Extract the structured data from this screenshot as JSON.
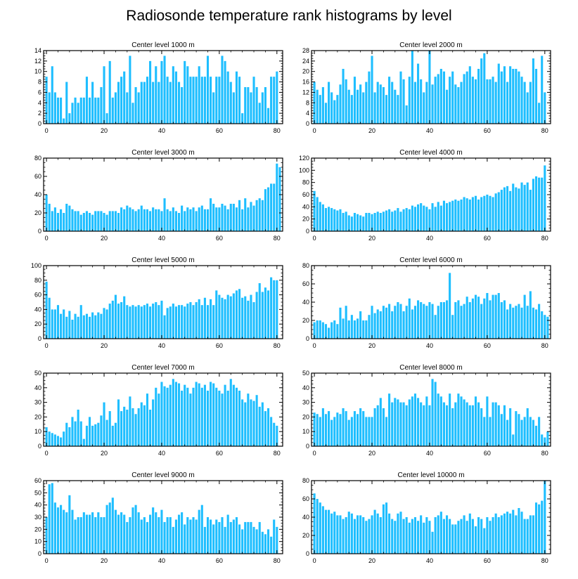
{
  "figure": {
    "title": "Radiosonde temperature rank histograms by level",
    "bar_color": "#1ebeff",
    "axis_color": "#000000"
  },
  "chart_data": [
    {
      "type": "bar",
      "title": "Center level 1000 m",
      "x_ticks": [
        0,
        20,
        40,
        60,
        80
      ],
      "xlim": [
        -1,
        82
      ],
      "ylim": [
        0,
        14
      ],
      "y_ticks": [
        0,
        2,
        4,
        6,
        8,
        10,
        12,
        14
      ],
      "values": [
        9,
        6,
        11,
        6,
        5,
        5,
        1,
        8,
        2,
        4,
        5,
        4,
        5,
        5,
        9,
        5,
        8,
        5,
        5,
        7,
        11,
        2,
        12,
        5,
        6,
        8,
        9,
        10,
        6,
        13,
        4,
        7,
        6,
        8,
        8,
        9,
        12,
        8,
        11,
        8,
        12,
        13,
        9,
        8,
        11,
        10,
        8,
        7,
        12,
        11,
        9,
        9,
        9,
        11,
        9,
        9,
        13,
        9,
        6,
        9,
        9,
        13,
        12,
        10,
        8,
        6,
        10,
        9,
        2,
        7,
        7,
        6,
        9,
        7,
        4,
        6,
        7,
        3,
        9,
        9,
        10
      ]
    },
    {
      "type": "bar",
      "title": "Center level 2000 m",
      "x_ticks": [
        0,
        20,
        40,
        60,
        80
      ],
      "xlim": [
        -1,
        82
      ],
      "ylim": [
        0,
        28
      ],
      "y_ticks": [
        0,
        4,
        8,
        12,
        16,
        20,
        24,
        28
      ],
      "values": [
        16,
        13,
        11,
        14,
        8,
        16,
        12,
        9,
        11,
        15,
        21,
        17,
        13,
        11,
        18,
        13,
        15,
        12,
        16,
        20,
        26,
        12,
        16,
        15,
        14,
        11,
        18,
        16,
        13,
        11,
        20,
        17,
        7,
        18,
        28,
        16,
        23,
        17,
        12,
        16,
        28,
        15,
        18,
        19,
        21,
        20,
        13,
        18,
        20,
        15,
        14,
        16,
        19,
        20,
        22,
        18,
        17,
        21,
        25,
        27,
        17,
        17,
        18,
        16,
        23,
        20,
        22,
        16,
        22,
        21,
        21,
        20,
        18,
        16,
        12,
        16,
        25,
        21,
        8,
        26,
        12
      ]
    },
    {
      "type": "bar",
      "title": "Center level 3000 m",
      "x_ticks": [
        0,
        20,
        40,
        60,
        80
      ],
      "xlim": [
        -1,
        82
      ],
      "ylim": [
        0,
        80
      ],
      "y_ticks": [
        0,
        20,
        40,
        60,
        80
      ],
      "values": [
        40,
        30,
        22,
        26,
        20,
        24,
        20,
        30,
        28,
        24,
        22,
        22,
        18,
        20,
        22,
        20,
        18,
        22,
        22,
        22,
        20,
        18,
        22,
        22,
        22,
        20,
        26,
        24,
        28,
        26,
        24,
        22,
        24,
        28,
        24,
        24,
        22,
        26,
        24,
        24,
        22,
        36,
        24,
        22,
        26,
        22,
        20,
        28,
        22,
        26,
        24,
        26,
        22,
        26,
        28,
        24,
        24,
        36,
        30,
        26,
        26,
        30,
        28,
        24,
        30,
        30,
        26,
        34,
        24,
        36,
        26,
        32,
        28,
        34,
        36,
        34,
        46,
        48,
        52,
        52,
        74,
        70
      ]
    },
    {
      "type": "bar",
      "title": "Center level 4000 m",
      "x_ticks": [
        0,
        20,
        40,
        60,
        80
      ],
      "xlim": [
        -1,
        82
      ],
      "ylim": [
        0,
        120
      ],
      "y_ticks": [
        0,
        20,
        40,
        60,
        80,
        100,
        120
      ],
      "values": [
        66,
        56,
        48,
        44,
        38,
        40,
        38,
        36,
        34,
        36,
        30,
        32,
        26,
        24,
        30,
        28,
        26,
        24,
        30,
        30,
        28,
        30,
        32,
        30,
        32,
        34,
        36,
        32,
        34,
        38,
        32,
        36,
        38,
        36,
        42,
        40,
        44,
        46,
        42,
        40,
        36,
        46,
        40,
        48,
        42,
        50,
        46,
        48,
        50,
        52,
        50,
        52,
        56,
        54,
        52,
        56,
        58,
        52,
        56,
        58,
        60,
        58,
        56,
        62,
        64,
        68,
        72,
        74,
        66,
        78,
        72,
        70,
        80,
        76,
        80,
        68,
        86,
        90,
        88,
        88,
        108
      ]
    },
    {
      "type": "bar",
      "title": "Center level 5000 m",
      "x_ticks": [
        0,
        20,
        40,
        60,
        80
      ],
      "xlim": [
        -1,
        82
      ],
      "ylim": [
        0,
        100
      ],
      "y_ticks": [
        0,
        20,
        40,
        60,
        80,
        100
      ],
      "values": [
        78,
        56,
        40,
        40,
        46,
        34,
        40,
        30,
        38,
        26,
        34,
        30,
        46,
        32,
        34,
        30,
        36,
        32,
        36,
        34,
        42,
        40,
        48,
        52,
        60,
        48,
        50,
        58,
        46,
        44,
        46,
        44,
        46,
        44,
        46,
        48,
        44,
        48,
        50,
        46,
        52,
        32,
        42,
        44,
        48,
        44,
        46,
        46,
        44,
        48,
        50,
        46,
        50,
        54,
        46,
        56,
        46,
        54,
        46,
        66,
        60,
        56,
        54,
        60,
        58,
        62,
        66,
        68,
        56,
        58,
        52,
        60,
        50,
        64,
        76,
        64,
        70,
        66,
        84,
        80,
        80
      ]
    },
    {
      "type": "bar",
      "title": "Center level 6000 m",
      "x_ticks": [
        0,
        20,
        40,
        60,
        80
      ],
      "xlim": [
        -1,
        82
      ],
      "ylim": [
        0,
        80
      ],
      "y_ticks": [
        0,
        20,
        40,
        60,
        80
      ],
      "values": [
        18,
        20,
        20,
        18,
        16,
        12,
        18,
        20,
        16,
        34,
        22,
        36,
        20,
        26,
        20,
        22,
        30,
        20,
        20,
        26,
        36,
        28,
        32,
        30,
        36,
        34,
        38,
        30,
        36,
        40,
        38,
        30,
        36,
        44,
        32,
        36,
        42,
        40,
        38,
        36,
        40,
        38,
        26,
        36,
        40,
        40,
        42,
        72,
        26,
        40,
        42,
        36,
        38,
        46,
        40,
        44,
        48,
        46,
        38,
        44,
        50,
        42,
        48,
        48,
        50,
        40,
        42,
        32,
        38,
        34,
        36,
        38,
        34,
        48,
        36,
        52,
        34,
        32,
        38,
        30,
        26,
        24
      ]
    },
    {
      "type": "bar",
      "title": "Center level 7000 m",
      "x_ticks": [
        0,
        20,
        40,
        60,
        80
      ],
      "xlim": [
        -1,
        82
      ],
      "ylim": [
        0,
        50
      ],
      "y_ticks": [
        0,
        10,
        20,
        30,
        40,
        50
      ],
      "values": [
        13,
        10,
        9,
        8,
        7,
        6,
        10,
        16,
        13,
        20,
        17,
        25,
        17,
        5,
        14,
        20,
        14,
        15,
        16,
        21,
        30,
        18,
        24,
        14,
        16,
        32,
        24,
        27,
        25,
        34,
        26,
        22,
        26,
        30,
        28,
        36,
        25,
        32,
        40,
        36,
        44,
        41,
        40,
        42,
        46,
        44,
        43,
        38,
        42,
        40,
        36,
        40,
        44,
        43,
        40,
        42,
        38,
        44,
        43,
        40,
        38,
        36,
        42,
        38,
        46,
        42,
        40,
        38,
        32,
        30,
        36,
        32,
        31,
        35,
        27,
        30,
        24,
        26,
        20,
        16,
        14
      ]
    },
    {
      "type": "bar",
      "title": "Center level 8000 m",
      "x_ticks": [
        0,
        20,
        40,
        60,
        80
      ],
      "xlim": [
        -1,
        82
      ],
      "ylim": [
        0,
        50
      ],
      "y_ticks": [
        0,
        10,
        20,
        30,
        40,
        50
      ],
      "values": [
        23,
        22,
        20,
        26,
        22,
        24,
        18,
        20,
        23,
        22,
        26,
        24,
        18,
        20,
        24,
        22,
        26,
        24,
        20,
        20,
        20,
        26,
        28,
        33,
        26,
        20,
        36,
        30,
        33,
        32,
        30,
        30,
        28,
        32,
        34,
        36,
        33,
        30,
        28,
        34,
        28,
        46,
        44,
        36,
        34,
        30,
        28,
        36,
        26,
        30,
        36,
        34,
        32,
        30,
        28,
        28,
        34,
        30,
        26,
        20,
        34,
        20,
        30,
        30,
        28,
        22,
        28,
        18,
        26,
        8,
        24,
        22,
        18,
        20,
        26,
        20,
        18,
        14,
        20,
        8,
        6,
        10
      ]
    },
    {
      "type": "bar",
      "title": "Center level 9000 m",
      "x_ticks": [
        0,
        20,
        40,
        60,
        80
      ],
      "xlim": [
        -1,
        82
      ],
      "ylim": [
        0,
        60
      ],
      "y_ticks": [
        0,
        10,
        20,
        30,
        40,
        50,
        60
      ],
      "values": [
        30,
        57,
        58,
        42,
        38,
        40,
        36,
        34,
        48,
        36,
        28,
        30,
        30,
        34,
        32,
        32,
        34,
        30,
        34,
        30,
        30,
        40,
        42,
        46,
        36,
        32,
        34,
        32,
        26,
        30,
        38,
        40,
        34,
        28,
        30,
        26,
        32,
        38,
        34,
        30,
        36,
        26,
        30,
        30,
        22,
        28,
        32,
        34,
        24,
        30,
        28,
        30,
        28,
        36,
        40,
        22,
        30,
        28,
        24,
        28,
        26,
        30,
        22,
        32,
        26,
        28,
        30,
        24,
        20,
        26,
        26,
        26,
        22,
        20,
        26,
        18,
        16,
        20,
        14,
        28,
        22
      ]
    },
    {
      "type": "bar",
      "title": "Center level 10000 m",
      "x_ticks": [
        0,
        20,
        40,
        60,
        80
      ],
      "xlim": [
        -1,
        82
      ],
      "ylim": [
        0,
        80
      ],
      "y_ticks": [
        0,
        20,
        40,
        60,
        80
      ],
      "values": [
        66,
        60,
        56,
        52,
        48,
        48,
        44,
        46,
        42,
        42,
        38,
        40,
        46,
        44,
        38,
        42,
        42,
        40,
        36,
        38,
        42,
        48,
        44,
        40,
        54,
        56,
        44,
        38,
        36,
        44,
        46,
        38,
        40,
        34,
        38,
        40,
        36,
        42,
        34,
        40,
        36,
        24,
        40,
        42,
        46,
        38,
        42,
        38,
        32,
        32,
        36,
        38,
        42,
        36,
        44,
        38,
        30,
        40,
        38,
        28,
        40,
        36,
        40,
        44,
        40,
        42,
        44,
        46,
        44,
        48,
        42,
        50,
        46,
        38,
        38,
        42,
        42,
        56,
        54,
        58,
        80
      ]
    }
  ]
}
